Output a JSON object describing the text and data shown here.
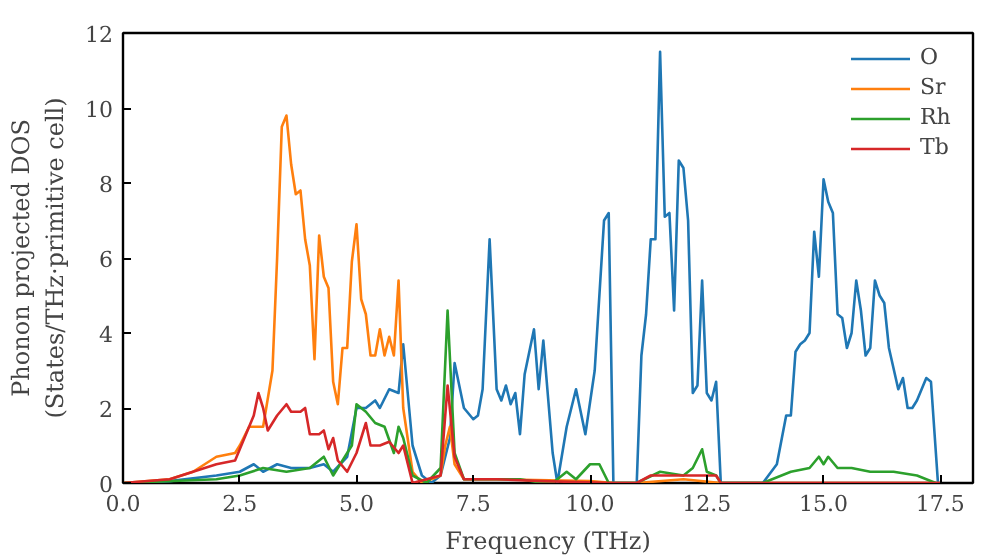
{
  "chart_data": {
    "type": "line",
    "xlabel": "Frequency (THz)",
    "ylabel": "Phonon projected DOS\n(States/THz·primitive cell)",
    "xlim": [
      0,
      18.2
    ],
    "ylim": [
      0,
      12
    ],
    "xticks": [
      {
        "value": 0,
        "label": "0.0"
      },
      {
        "value": 2.5,
        "label": "2.5"
      },
      {
        "value": 5,
        "label": "5.0"
      },
      {
        "value": 7.5,
        "label": "7.5"
      },
      {
        "value": 10,
        "label": "10.0"
      },
      {
        "value": 12.5,
        "label": "12.5"
      },
      {
        "value": 15,
        "label": "15.0"
      },
      {
        "value": 17.5,
        "label": "17.5"
      }
    ],
    "yticks": [
      0,
      2,
      4,
      6,
      8,
      10,
      12
    ],
    "legend": "top right",
    "grid": false,
    "series": [
      {
        "name": "O",
        "color": "#1f77b4",
        "x": [
          0,
          1,
          2,
          2.5,
          2.8,
          3.0,
          3.3,
          3.6,
          4.0,
          4.3,
          4.5,
          4.8,
          5.0,
          5.2,
          5.4,
          5.5,
          5.7,
          5.9,
          6.0,
          6.2,
          6.4,
          6.6,
          6.8,
          7.0,
          7.1,
          7.3,
          7.5,
          7.6,
          7.7,
          7.85,
          8.0,
          8.1,
          8.2,
          8.3,
          8.4,
          8.5,
          8.6,
          8.8,
          8.9,
          9.0,
          9.2,
          9.3,
          9.5,
          9.7,
          9.9,
          10.1,
          10.3,
          10.4,
          10.5,
          11.0,
          11.1,
          11.2,
          11.3,
          11.4,
          11.5,
          11.6,
          11.7,
          11.8,
          11.9,
          12.0,
          12.1,
          12.2,
          12.3,
          12.4,
          12.5,
          12.6,
          12.7,
          12.8,
          13.7,
          14.0,
          14.2,
          14.3,
          14.4,
          14.5,
          14.6,
          14.7,
          14.8,
          14.9,
          15.0,
          15.1,
          15.2,
          15.3,
          15.4,
          15.5,
          15.6,
          15.7,
          15.8,
          15.9,
          16.0,
          16.1,
          16.2,
          16.3,
          16.4,
          16.6,
          16.7,
          16.8,
          16.9,
          17.0,
          17.2,
          17.3,
          17.45
        ],
        "values": [
          0,
          0.05,
          0.2,
          0.3,
          0.5,
          0.3,
          0.5,
          0.4,
          0.4,
          0.5,
          0.3,
          0.7,
          2.0,
          2.0,
          2.2,
          2.0,
          2.5,
          2.4,
          3.7,
          1.0,
          0.2,
          0,
          0.2,
          1.2,
          3.2,
          2.0,
          1.7,
          1.8,
          2.5,
          6.5,
          2.5,
          2.2,
          2.6,
          2.1,
          2.4,
          1.3,
          2.9,
          4.1,
          2.5,
          3.8,
          0.8,
          0,
          1.5,
          2.5,
          1.3,
          3.0,
          7.0,
          7.2,
          0,
          0,
          3.4,
          4.5,
          6.5,
          6.5,
          11.5,
          7.1,
          7.2,
          4.6,
          8.6,
          8.4,
          7.0,
          2.4,
          2.6,
          5.4,
          2.4,
          2.2,
          2.7,
          0,
          0,
          0.5,
          1.8,
          1.8,
          3.5,
          3.7,
          3.8,
          4.0,
          6.7,
          5.5,
          8.1,
          7.5,
          7.2,
          4.5,
          4.4,
          3.6,
          4.0,
          5.4,
          4.6,
          3.4,
          3.6,
          5.4,
          5.0,
          4.8,
          3.6,
          2.5,
          2.8,
          2.0,
          2.0,
          2.2,
          2.8,
          2.7,
          0
        ]
      },
      {
        "name": "Sr",
        "color": "#ff7f0e",
        "x": [
          0,
          1,
          1.5,
          2.0,
          2.4,
          2.5,
          2.7,
          3.0,
          3.2,
          3.3,
          3.4,
          3.5,
          3.6,
          3.7,
          3.8,
          3.9,
          4.0,
          4.1,
          4.2,
          4.3,
          4.4,
          4.5,
          4.6,
          4.7,
          4.8,
          4.9,
          5.0,
          5.1,
          5.2,
          5.3,
          5.4,
          5.5,
          5.6,
          5.7,
          5.8,
          5.9,
          6.0,
          6.2,
          6.4,
          6.8,
          6.9,
          7.0,
          7.1,
          7.3,
          8.0,
          10.0,
          10.5,
          11.0,
          12.0,
          12.8,
          17.5
        ],
        "values": [
          0,
          0.1,
          0.3,
          0.7,
          0.8,
          1.0,
          1.5,
          1.5,
          3.0,
          6.0,
          9.5,
          9.8,
          8.5,
          7.7,
          7.8,
          6.5,
          5.8,
          3.3,
          6.6,
          5.5,
          5.2,
          2.7,
          2.1,
          3.6,
          3.6,
          5.9,
          6.9,
          4.9,
          4.5,
          3.4,
          3.4,
          4.1,
          3.4,
          3.9,
          3.4,
          5.4,
          2.0,
          0.3,
          0,
          0.2,
          1.0,
          1.5,
          0.5,
          0.1,
          0.1,
          0.05,
          0,
          0,
          0.1,
          0,
          0
        ]
      },
      {
        "name": "Rh",
        "color": "#2ca02c",
        "x": [
          0,
          2,
          2.5,
          3.0,
          3.5,
          4.0,
          4.3,
          4.5,
          4.7,
          4.9,
          5.0,
          5.2,
          5.4,
          5.6,
          5.8,
          5.9,
          6.0,
          6.2,
          6.5,
          6.8,
          6.95,
          7.1,
          7.3,
          8.5,
          9.0,
          9.2,
          9.5,
          9.7,
          10.0,
          10.2,
          10.4,
          11.0,
          11.5,
          12.0,
          12.2,
          12.4,
          12.5,
          12.7,
          12.8,
          13.7,
          14.3,
          14.7,
          14.9,
          15.0,
          15.1,
          15.3,
          15.6,
          16.0,
          16.5,
          17.0,
          17.4
        ],
        "values": [
          0,
          0.1,
          0.2,
          0.4,
          0.3,
          0.4,
          0.7,
          0.2,
          0.6,
          1.0,
          2.1,
          1.9,
          1.6,
          1.5,
          0.8,
          1.5,
          1.2,
          0.2,
          0,
          0.4,
          4.6,
          0.8,
          0.1,
          0.1,
          0,
          0,
          0.3,
          0.1,
          0.5,
          0.5,
          0,
          0,
          0.3,
          0.2,
          0.4,
          0.9,
          0.3,
          0.2,
          0,
          0,
          0.3,
          0.4,
          0.7,
          0.5,
          0.7,
          0.4,
          0.4,
          0.3,
          0.3,
          0.2,
          0
        ]
      },
      {
        "name": "Tb",
        "color": "#d62728",
        "x": [
          0,
          1,
          1.5,
          2.0,
          2.4,
          2.6,
          2.8,
          2.9,
          3.0,
          3.1,
          3.3,
          3.5,
          3.6,
          3.8,
          3.9,
          4.0,
          4.2,
          4.3,
          4.4,
          4.5,
          4.6,
          4.8,
          5.0,
          5.2,
          5.3,
          5.5,
          5.7,
          5.9,
          6.0,
          6.2,
          6.8,
          6.95,
          7.1,
          7.3,
          8.0,
          9.0,
          10.5,
          11.0,
          11.3,
          12.0,
          12.7,
          12.8,
          17.5
        ],
        "values": [
          0,
          0.1,
          0.3,
          0.5,
          0.6,
          1.2,
          1.8,
          2.4,
          2.0,
          1.4,
          1.8,
          2.1,
          1.9,
          1.9,
          2.0,
          1.3,
          1.3,
          1.4,
          0.9,
          1.2,
          0.6,
          0.3,
          0.8,
          1.6,
          1.0,
          1.0,
          1.1,
          0.8,
          1.0,
          0,
          0.2,
          2.6,
          0.7,
          0.1,
          0.1,
          0.05,
          0,
          0,
          0.2,
          0.2,
          0.2,
          0,
          0
        ]
      }
    ]
  }
}
